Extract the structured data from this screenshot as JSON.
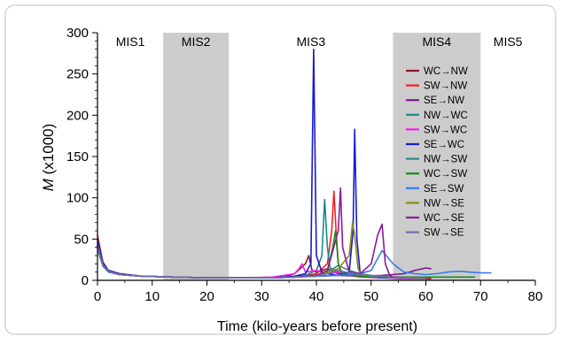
{
  "chart_data": {
    "type": "line",
    "xlabel": "Time (kilo-years before present)",
    "ylabel_symbol": "M",
    "ylabel_rest": " (x1000)",
    "xlim": [
      0,
      80
    ],
    "ylim": [
      0,
      300
    ],
    "xticks": [
      0,
      10,
      20,
      30,
      40,
      50,
      60,
      70,
      80
    ],
    "yticks": [
      0,
      50,
      100,
      150,
      200,
      250,
      300
    ],
    "grid": false,
    "legend_position": "right-inside",
    "periods": [
      {
        "label": "MIS1",
        "start": 0,
        "end": 12,
        "shaded": false
      },
      {
        "label": "MIS2",
        "start": 12,
        "end": 24,
        "shaded": true
      },
      {
        "label": "MIS3",
        "start": 24,
        "end": 54,
        "shaded": false
      },
      {
        "label": "MIS4",
        "start": 54,
        "end": 70,
        "shaded": true
      },
      {
        "label": "MIS5",
        "start": 70,
        "end": 80,
        "shaded": false
      }
    ],
    "series": [
      {
        "name": "WC→NW",
        "color": "#8b1a1a",
        "x": [
          0,
          0.5,
          1,
          2,
          4,
          8,
          14,
          20,
          26,
          30,
          34,
          36,
          38,
          38.6,
          39.2,
          40,
          42,
          44,
          48,
          52,
          56,
          60,
          61
        ],
        "y": [
          45,
          32,
          20,
          12,
          8,
          5,
          4,
          3,
          3,
          3,
          4,
          8,
          20,
          30,
          12,
          10,
          14,
          8,
          6,
          4,
          3,
          2,
          2
        ]
      },
      {
        "name": "SW→NW",
        "color": "#ee2222",
        "x": [
          0,
          0.5,
          1,
          2,
          4,
          8,
          14,
          20,
          26,
          32,
          36,
          40,
          42,
          42.8,
          43.2,
          43.6,
          44,
          44.6,
          46,
          48,
          52,
          56,
          60
        ],
        "y": [
          55,
          38,
          22,
          12,
          8,
          5,
          4,
          3,
          3,
          3,
          4,
          8,
          20,
          60,
          108,
          60,
          20,
          10,
          6,
          4,
          3,
          2,
          2
        ]
      },
      {
        "name": "SE→NW",
        "color": "#7a1a8a",
        "x": [
          0,
          0.5,
          1,
          2,
          4,
          8,
          14,
          20,
          26,
          32,
          36,
          40,
          44,
          48,
          52,
          56,
          58,
          60,
          61
        ],
        "y": [
          40,
          28,
          18,
          11,
          7,
          5,
          4,
          3,
          3,
          3,
          4,
          5,
          6,
          5,
          6,
          8,
          12,
          15,
          14
        ]
      },
      {
        "name": "NW→WC",
        "color": "#1a8a8a",
        "x": [
          0,
          0.5,
          1,
          2,
          4,
          8,
          14,
          20,
          26,
          32,
          36,
          38,
          40,
          41,
          41.5,
          42,
          42.5,
          44,
          46,
          48,
          52,
          56,
          60
        ],
        "y": [
          42,
          30,
          19,
          11,
          8,
          5,
          4,
          3,
          3,
          3,
          4,
          6,
          12,
          30,
          98,
          40,
          15,
          10,
          8,
          6,
          4,
          3,
          2
        ]
      },
      {
        "name": "SW→WC",
        "color": "#ee22ee",
        "x": [
          0,
          0.5,
          1,
          2,
          4,
          8,
          14,
          20,
          26,
          32,
          34,
          36,
          36.8,
          37.4,
          38,
          40,
          42,
          44,
          46,
          48,
          52,
          56,
          60
        ],
        "y": [
          48,
          33,
          20,
          12,
          8,
          5,
          4,
          3,
          3,
          4,
          6,
          8,
          14,
          20,
          10,
          12,
          8,
          10,
          6,
          5,
          3,
          2,
          2
        ]
      },
      {
        "name": "SE→WC",
        "color": "#1a1acc",
        "x": [
          0,
          0.5,
          1,
          2,
          4,
          8,
          14,
          20,
          26,
          32,
          36,
          38,
          39,
          39.5,
          40,
          41,
          42,
          44,
          46,
          46.7,
          47,
          47.4,
          48,
          50,
          52,
          54,
          56,
          58,
          60
        ],
        "y": [
          50,
          35,
          21,
          12,
          8,
          5,
          4,
          3,
          3,
          3,
          5,
          8,
          20,
          280,
          30,
          10,
          8,
          6,
          10,
          60,
          183,
          50,
          8,
          4,
          3,
          3,
          3,
          3,
          3
        ]
      },
      {
        "name": "NW→SW",
        "color": "#2a8a8a",
        "x": [
          0,
          0.5,
          1,
          2,
          4,
          8,
          14,
          20,
          26,
          32,
          36,
          40,
          42,
          44,
          46,
          48,
          50,
          52,
          54,
          56,
          58,
          60
        ],
        "y": [
          38,
          27,
          17,
          10,
          7,
          5,
          4,
          3,
          3,
          3,
          4,
          6,
          10,
          18,
          12,
          8,
          6,
          5,
          4,
          4,
          3,
          3
        ]
      },
      {
        "name": "WC→SW",
        "color": "#1a8a1a",
        "x": [
          0,
          0.5,
          1,
          2,
          4,
          8,
          14,
          20,
          26,
          32,
          36,
          40,
          42,
          43,
          43.5,
          44,
          44.5,
          45,
          46,
          48,
          50,
          54,
          58,
          62,
          66,
          69
        ],
        "y": [
          40,
          28,
          18,
          11,
          7,
          5,
          4,
          3,
          3,
          3,
          4,
          6,
          12,
          40,
          60,
          20,
          10,
          8,
          6,
          5,
          4,
          4,
          4,
          4,
          4,
          4
        ]
      },
      {
        "name": "SE→SW",
        "color": "#3a7aee",
        "x": [
          0,
          0.5,
          1,
          2,
          4,
          8,
          14,
          20,
          26,
          32,
          36,
          40,
          44,
          48,
          50,
          52,
          54,
          56,
          58,
          60,
          62,
          64,
          66,
          68,
          70,
          72
        ],
        "y": [
          44,
          31,
          19,
          11,
          7,
          5,
          4,
          3,
          3,
          3,
          4,
          5,
          6,
          8,
          12,
          36,
          20,
          10,
          8,
          7,
          8,
          10,
          11,
          10,
          9,
          9
        ]
      },
      {
        "name": "NW→SE",
        "color": "#8a8a1a",
        "x": [
          0,
          0.5,
          1,
          2,
          4,
          8,
          14,
          20,
          26,
          32,
          36,
          40,
          42,
          44,
          46,
          46.6,
          47,
          47.6,
          48,
          50,
          52,
          54,
          56,
          60
        ],
        "y": [
          42,
          29,
          18,
          11,
          7,
          5,
          4,
          3,
          3,
          3,
          4,
          6,
          10,
          14,
          30,
          70,
          55,
          15,
          8,
          5,
          4,
          3,
          3,
          2
        ]
      },
      {
        "name": "WC→SE",
        "color": "#8a1a9a",
        "x": [
          0,
          0.5,
          1,
          2,
          4,
          8,
          14,
          20,
          26,
          32,
          36,
          40,
          42,
          44,
          44.4,
          44.8,
          46,
          48,
          50,
          51.2,
          52,
          52.6,
          53.4,
          54,
          56,
          58,
          60
        ],
        "y": [
          43,
          30,
          19,
          11,
          7,
          5,
          4,
          3,
          3,
          3,
          4,
          6,
          12,
          60,
          112,
          40,
          10,
          8,
          20,
          55,
          68,
          20,
          6,
          4,
          3,
          3,
          3
        ]
      },
      {
        "name": "SW→SE",
        "color": "#6a70aa",
        "x": [
          0,
          0.5,
          1,
          2,
          4,
          8,
          14,
          20,
          26,
          32,
          36,
          40,
          42,
          44,
          46,
          48,
          50,
          52,
          54,
          56,
          58,
          60
        ],
        "y": [
          41,
          29,
          18,
          11,
          7,
          5,
          4,
          3,
          3,
          3,
          4,
          5,
          8,
          12,
          9,
          7,
          5,
          4,
          3,
          3,
          3,
          3
        ]
      }
    ]
  }
}
